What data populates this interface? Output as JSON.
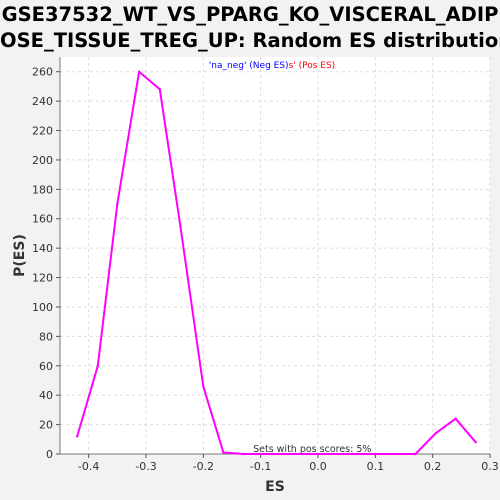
{
  "title_line1": "GSE37532_WT_VS_PPARG_KO_VISCERAL_ADIP",
  "title_line2": "OSE_TISSUE_TREG_UP: Random ES distribution",
  "colors": {
    "line": "#ff00ff",
    "neg": "#0000ff",
    "pos": "#ff0000",
    "plot_bg": "#ffffff",
    "grid": "#dddddd"
  },
  "chart_data": {
    "type": "line",
    "xlabel": "ES",
    "ylabel": "P(ES)",
    "xlim": [
      -0.45,
      0.3
    ],
    "ylim": [
      0,
      270
    ],
    "grid": true,
    "x_ticks": [
      -0.4,
      -0.3,
      -0.2,
      -0.1,
      0.0,
      0.1,
      0.2,
      0.3
    ],
    "x_tick_labels": [
      "-0.4",
      "-0.3",
      "-0.2",
      "-0.1",
      "0.0",
      "0.1",
      "0.2",
      "0.3"
    ],
    "y_ticks": [
      0,
      20,
      40,
      60,
      80,
      100,
      120,
      140,
      160,
      180,
      200,
      220,
      240,
      260
    ],
    "legend": {
      "neg_text": "'na_neg' (Neg ES)",
      "pos_text": "s' (Pos ES)",
      "placement": "top-center"
    },
    "annotation": "Sets with pos scores: 5%",
    "series": [
      {
        "x": [
          -0.42,
          -0.384,
          -0.35,
          -0.312,
          -0.276,
          -0.24,
          -0.2,
          -0.165,
          -0.13,
          -0.1,
          -0.06,
          0.0,
          0.06,
          0.1,
          0.17,
          0.205,
          0.24,
          0.275
        ],
        "y": [
          12,
          60,
          170,
          260,
          248,
          155,
          46,
          1,
          0,
          0,
          0,
          0,
          0,
          0,
          0,
          14,
          24,
          8
        ]
      }
    ]
  }
}
